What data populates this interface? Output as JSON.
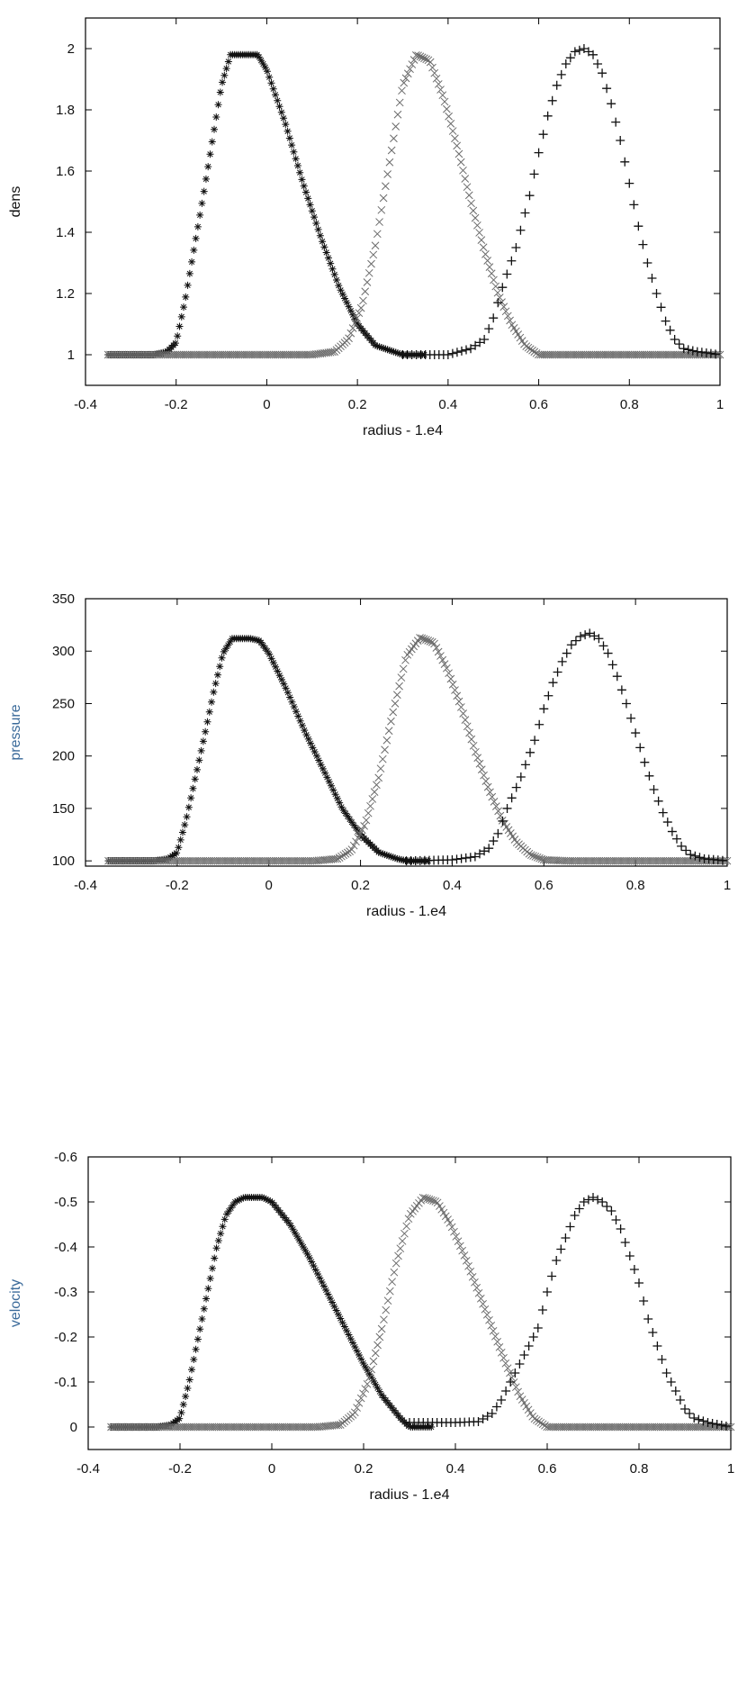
{
  "chart_data": [
    {
      "type": "scatter",
      "xlabel": "radius - 1.e4",
      "ylabel": "dens",
      "ylabel_color": "#111111",
      "xlim": [
        -0.4,
        1.0
      ],
      "ylim": [
        0.9,
        2.1
      ],
      "xticks": [
        "-0.4",
        "-0.2",
        "0",
        "0.2",
        "0.4",
        "0.6",
        "0.8",
        "1"
      ],
      "yticks": [
        "1",
        "1.2",
        "1.4",
        "1.6",
        "1.8",
        "2"
      ],
      "grid": false,
      "legend": "none",
      "series": [
        {
          "marker": "asterisk",
          "color": "#111111",
          "density": "dense",
          "x": [
            -0.35,
            -0.25,
            -0.22,
            -0.2,
            -0.18,
            -0.16,
            -0.14,
            -0.12,
            -0.1,
            -0.08,
            -0.06,
            -0.04,
            -0.02,
            0.0,
            0.04,
            0.08,
            0.12,
            0.16,
            0.2,
            0.24,
            0.28,
            0.3,
            0.35
          ],
          "y": [
            1.0,
            1.0,
            1.01,
            1.04,
            1.18,
            1.35,
            1.52,
            1.7,
            1.88,
            1.98,
            1.98,
            1.98,
            1.98,
            1.93,
            1.76,
            1.56,
            1.38,
            1.22,
            1.1,
            1.03,
            1.01,
            1.0,
            1.0
          ]
        },
        {
          "marker": "x",
          "color": "#6a6a6a",
          "density": "dense",
          "x": [
            -0.35,
            0.1,
            0.15,
            0.18,
            0.21,
            0.24,
            0.27,
            0.3,
            0.33,
            0.36,
            0.39,
            0.42,
            0.45,
            0.48,
            0.51,
            0.54,
            0.57,
            0.6,
            0.65,
            1.0
          ],
          "y": [
            1.0,
            1.0,
            1.01,
            1.05,
            1.16,
            1.36,
            1.62,
            1.88,
            1.98,
            1.96,
            1.84,
            1.68,
            1.5,
            1.34,
            1.2,
            1.1,
            1.03,
            1.0,
            1.0,
            1.0
          ]
        },
        {
          "marker": "plus",
          "color": "#111111",
          "density": "sparse",
          "x": [
            0.3,
            0.4,
            0.45,
            0.48,
            0.5,
            0.52,
            0.55,
            0.58,
            0.6,
            0.62,
            0.64,
            0.66,
            0.68,
            0.7,
            0.72,
            0.74,
            0.76,
            0.78,
            0.8,
            0.82,
            0.84,
            0.86,
            0.88,
            0.9,
            0.92,
            0.95,
            1.0
          ],
          "y": [
            1.0,
            1.0,
            1.02,
            1.05,
            1.12,
            1.22,
            1.35,
            1.52,
            1.66,
            1.78,
            1.88,
            1.95,
            1.99,
            2.0,
            1.98,
            1.92,
            1.82,
            1.7,
            1.56,
            1.42,
            1.3,
            1.2,
            1.11,
            1.05,
            1.02,
            1.01,
            1.0
          ]
        }
      ]
    },
    {
      "type": "scatter",
      "xlabel": "radius - 1.e4",
      "ylabel": "pressure",
      "ylabel_color": "#3a6a9a",
      "xlim": [
        -0.4,
        1.0
      ],
      "ylim": [
        95,
        350
      ],
      "xticks": [
        "-0.4",
        "-0.2",
        "0",
        "0.2",
        "0.4",
        "0.6",
        "0.8",
        "1"
      ],
      "yticks": [
        "100",
        "150",
        "200",
        "250",
        "300",
        "350"
      ],
      "grid": false,
      "legend": "none",
      "series": [
        {
          "marker": "asterisk",
          "color": "#111111",
          "density": "dense",
          "x": [
            -0.35,
            -0.25,
            -0.22,
            -0.2,
            -0.18,
            -0.16,
            -0.14,
            -0.12,
            -0.1,
            -0.08,
            -0.06,
            -0.04,
            -0.02,
            0.0,
            0.04,
            0.08,
            0.12,
            0.16,
            0.2,
            0.24,
            0.28,
            0.3,
            0.35
          ],
          "y": [
            100,
            100,
            102,
            108,
            140,
            180,
            220,
            262,
            298,
            312,
            312,
            312,
            310,
            298,
            262,
            222,
            186,
            150,
            125,
            108,
            102,
            100,
            100
          ]
        },
        {
          "marker": "x",
          "color": "#6a6a6a",
          "density": "dense",
          "x": [
            -0.35,
            0.1,
            0.15,
            0.18,
            0.21,
            0.24,
            0.27,
            0.3,
            0.33,
            0.36,
            0.39,
            0.42,
            0.45,
            0.48,
            0.51,
            0.54,
            0.57,
            0.6,
            0.65,
            1.0
          ],
          "y": [
            100,
            100,
            102,
            110,
            135,
            180,
            240,
            295,
            313,
            308,
            282,
            246,
            205,
            168,
            138,
            118,
            106,
            101,
            100,
            100
          ]
        },
        {
          "marker": "plus",
          "color": "#111111",
          "density": "sparse",
          "x": [
            0.3,
            0.4,
            0.45,
            0.48,
            0.5,
            0.52,
            0.55,
            0.58,
            0.6,
            0.62,
            0.64,
            0.66,
            0.68,
            0.7,
            0.72,
            0.74,
            0.76,
            0.78,
            0.8,
            0.82,
            0.84,
            0.86,
            0.88,
            0.9,
            0.92,
            0.95,
            1.0
          ],
          "y": [
            100,
            101,
            104,
            112,
            126,
            150,
            180,
            215,
            245,
            270,
            290,
            306,
            314,
            317,
            312,
            298,
            276,
            250,
            222,
            194,
            168,
            146,
            128,
            114,
            106,
            102,
            100
          ]
        }
      ]
    },
    {
      "type": "scatter",
      "xlabel": "radius - 1.e4",
      "ylabel": "velocity",
      "ylabel_color": "#3a6a9a",
      "xlim": [
        -0.4,
        1.0
      ],
      "ylim": [
        0.05,
        -0.6
      ],
      "xticks": [
        "-0.4",
        "-0.2",
        "0",
        "0.2",
        "0.4",
        "0.6",
        "0.8",
        "1"
      ],
      "yticks": [
        "0",
        "-0.1",
        "-0.2",
        "-0.3",
        "-0.4",
        "-0.5",
        "-0.6"
      ],
      "grid": false,
      "legend": "none",
      "series": [
        {
          "marker": "asterisk",
          "color": "#111111",
          "density": "dense",
          "x": [
            -0.35,
            -0.25,
            -0.22,
            -0.2,
            -0.18,
            -0.16,
            -0.14,
            -0.12,
            -0.1,
            -0.08,
            -0.06,
            -0.04,
            -0.02,
            0.0,
            0.04,
            0.08,
            0.12,
            0.16,
            0.2,
            0.24,
            0.28,
            0.3,
            0.35
          ],
          "y": [
            0.0,
            0.0,
            -0.005,
            -0.02,
            -0.1,
            -0.2,
            -0.3,
            -0.4,
            -0.47,
            -0.5,
            -0.51,
            -0.51,
            -0.51,
            -0.5,
            -0.45,
            -0.38,
            -0.3,
            -0.22,
            -0.14,
            -0.07,
            -0.02,
            0.0,
            0.0
          ]
        },
        {
          "marker": "x",
          "color": "#6a6a6a",
          "density": "dense",
          "x": [
            -0.35,
            0.1,
            0.15,
            0.18,
            0.21,
            0.24,
            0.27,
            0.3,
            0.33,
            0.36,
            0.39,
            0.42,
            0.45,
            0.48,
            0.51,
            0.54,
            0.57,
            0.6,
            0.65,
            1.0
          ],
          "y": [
            0.0,
            0.0,
            -0.005,
            -0.03,
            -0.1,
            -0.22,
            -0.36,
            -0.47,
            -0.51,
            -0.5,
            -0.45,
            -0.38,
            -0.3,
            -0.22,
            -0.14,
            -0.07,
            -0.02,
            0.0,
            0.0,
            0.0
          ]
        },
        {
          "marker": "plus",
          "color": "#111111",
          "density": "sparse",
          "x": [
            0.3,
            0.4,
            0.45,
            0.48,
            0.5,
            0.52,
            0.55,
            0.58,
            0.6,
            0.62,
            0.64,
            0.66,
            0.68,
            0.7,
            0.72,
            0.74,
            0.76,
            0.78,
            0.8,
            0.82,
            0.84,
            0.86,
            0.88,
            0.9,
            0.92,
            0.95,
            1.0
          ],
          "y": [
            -0.01,
            -0.01,
            -0.012,
            -0.03,
            -0.06,
            -0.1,
            -0.16,
            -0.22,
            -0.3,
            -0.37,
            -0.42,
            -0.47,
            -0.5,
            -0.51,
            -0.5,
            -0.48,
            -0.44,
            -0.38,
            -0.32,
            -0.24,
            -0.18,
            -0.12,
            -0.08,
            -0.04,
            -0.02,
            -0.01,
            0.0
          ]
        }
      ]
    }
  ]
}
